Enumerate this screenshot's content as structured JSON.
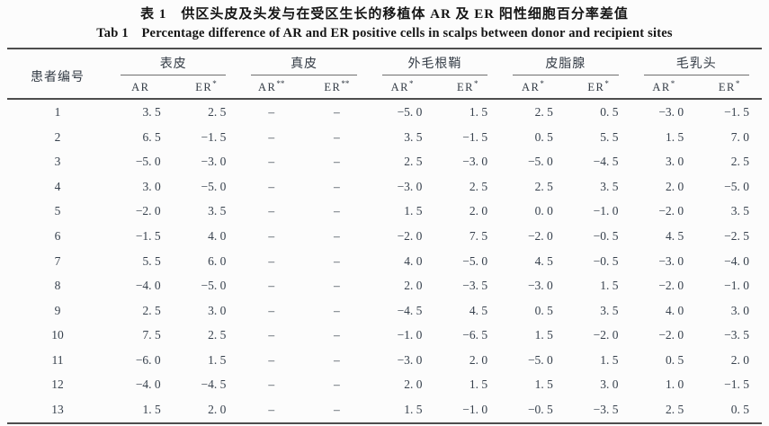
{
  "page": {
    "title_zh": "表 1　供区头皮及头发与在受区生长的移植体 AR 及 ER 阳性细胞百分率差值",
    "title_en": "Tab 1　Percentage difference of AR  and ER positive cells in scalps between donor and recipient sites"
  },
  "table": {
    "patient_header": "患者编号",
    "groups": [
      {
        "label": "表皮"
      },
      {
        "label": "真皮"
      },
      {
        "label": "外毛根鞘"
      },
      {
        "label": "皮脂腺"
      },
      {
        "label": "毛乳头"
      }
    ],
    "columns": [
      {
        "text": "AR",
        "sup": ""
      },
      {
        "text": "ER",
        "sup": "*"
      },
      {
        "text": "AR",
        "sup": "**"
      },
      {
        "text": "ER",
        "sup": "**"
      },
      {
        "text": "AR",
        "sup": "*"
      },
      {
        "text": "ER",
        "sup": "*"
      },
      {
        "text": "AR",
        "sup": "*"
      },
      {
        "text": "ER",
        "sup": "*"
      },
      {
        "text": "AR",
        "sup": "*"
      },
      {
        "text": "ER",
        "sup": "*"
      }
    ],
    "rows": [
      [
        "1",
        "3. 5",
        "2. 5",
        "–",
        "–",
        "−5. 0",
        "1. 5",
        "2. 5",
        "0. 5",
        "−3. 0",
        "−1. 5"
      ],
      [
        "2",
        "6. 5",
        "−1. 5",
        "–",
        "–",
        "3. 5",
        "−1. 5",
        "0. 5",
        "5. 5",
        "1. 5",
        "7. 0"
      ],
      [
        "3",
        "−5. 0",
        "−3. 0",
        "–",
        "–",
        "2. 5",
        "−3. 0",
        "−5. 0",
        "−4. 5",
        "3. 0",
        "2. 5"
      ],
      [
        "4",
        "3. 0",
        "−5. 0",
        "–",
        "–",
        "−3. 0",
        "2. 5",
        "2. 5",
        "3. 5",
        "2. 0",
        "−5. 0"
      ],
      [
        "5",
        "−2. 0",
        "3. 5",
        "–",
        "–",
        "1. 5",
        "2. 0",
        "0. 0",
        "−1. 0",
        "−2. 0",
        "3. 5"
      ],
      [
        "6",
        "−1. 5",
        "4. 0",
        "–",
        "–",
        "−2. 0",
        "7. 5",
        "−2. 0",
        "−0. 5",
        "4. 5",
        "−2. 5"
      ],
      [
        "7",
        "5. 5",
        "6. 0",
        "–",
        "–",
        "4. 0",
        "−5. 0",
        "4. 5",
        "−0. 5",
        "−3. 0",
        "−4. 0"
      ],
      [
        "8",
        "−4. 0",
        "−5. 0",
        "–",
        "–",
        "2. 0",
        "−3. 5",
        "−3. 0",
        "1. 5",
        "−2. 0",
        "−1. 0"
      ],
      [
        "9",
        "2. 5",
        "3. 0",
        "–",
        "–",
        "−4. 5",
        "4. 5",
        "0. 5",
        "3. 5",
        "4. 0",
        "3. 0"
      ],
      [
        "10",
        "7. 5",
        "2. 5",
        "–",
        "–",
        "−1. 0",
        "−6. 5",
        "1. 5",
        "−2. 0",
        "−2. 0",
        "−3. 5"
      ],
      [
        "11",
        "−6. 0",
        "1. 5",
        "–",
        "–",
        "−3. 0",
        "2. 0",
        "−5. 0",
        "1. 5",
        "0. 5",
        "2. 0"
      ],
      [
        "12",
        "−4. 0",
        "−4. 5",
        "–",
        "–",
        "2. 0",
        "1. 5",
        "1. 5",
        "3. 0",
        "1. 0",
        "−1. 5"
      ],
      [
        "13",
        "1. 5",
        "2. 0",
        "–",
        "–",
        "1. 5",
        "−1. 0",
        "−0. 5",
        "−3. 5",
        "2. 5",
        "0. 5"
      ]
    ]
  },
  "colors": {
    "background": "#fcfcfc",
    "title_text": "#151515",
    "body_text": "#37414d",
    "rule_heavy": "#4d4d4d",
    "rule_light": "#6e6e6e"
  }
}
